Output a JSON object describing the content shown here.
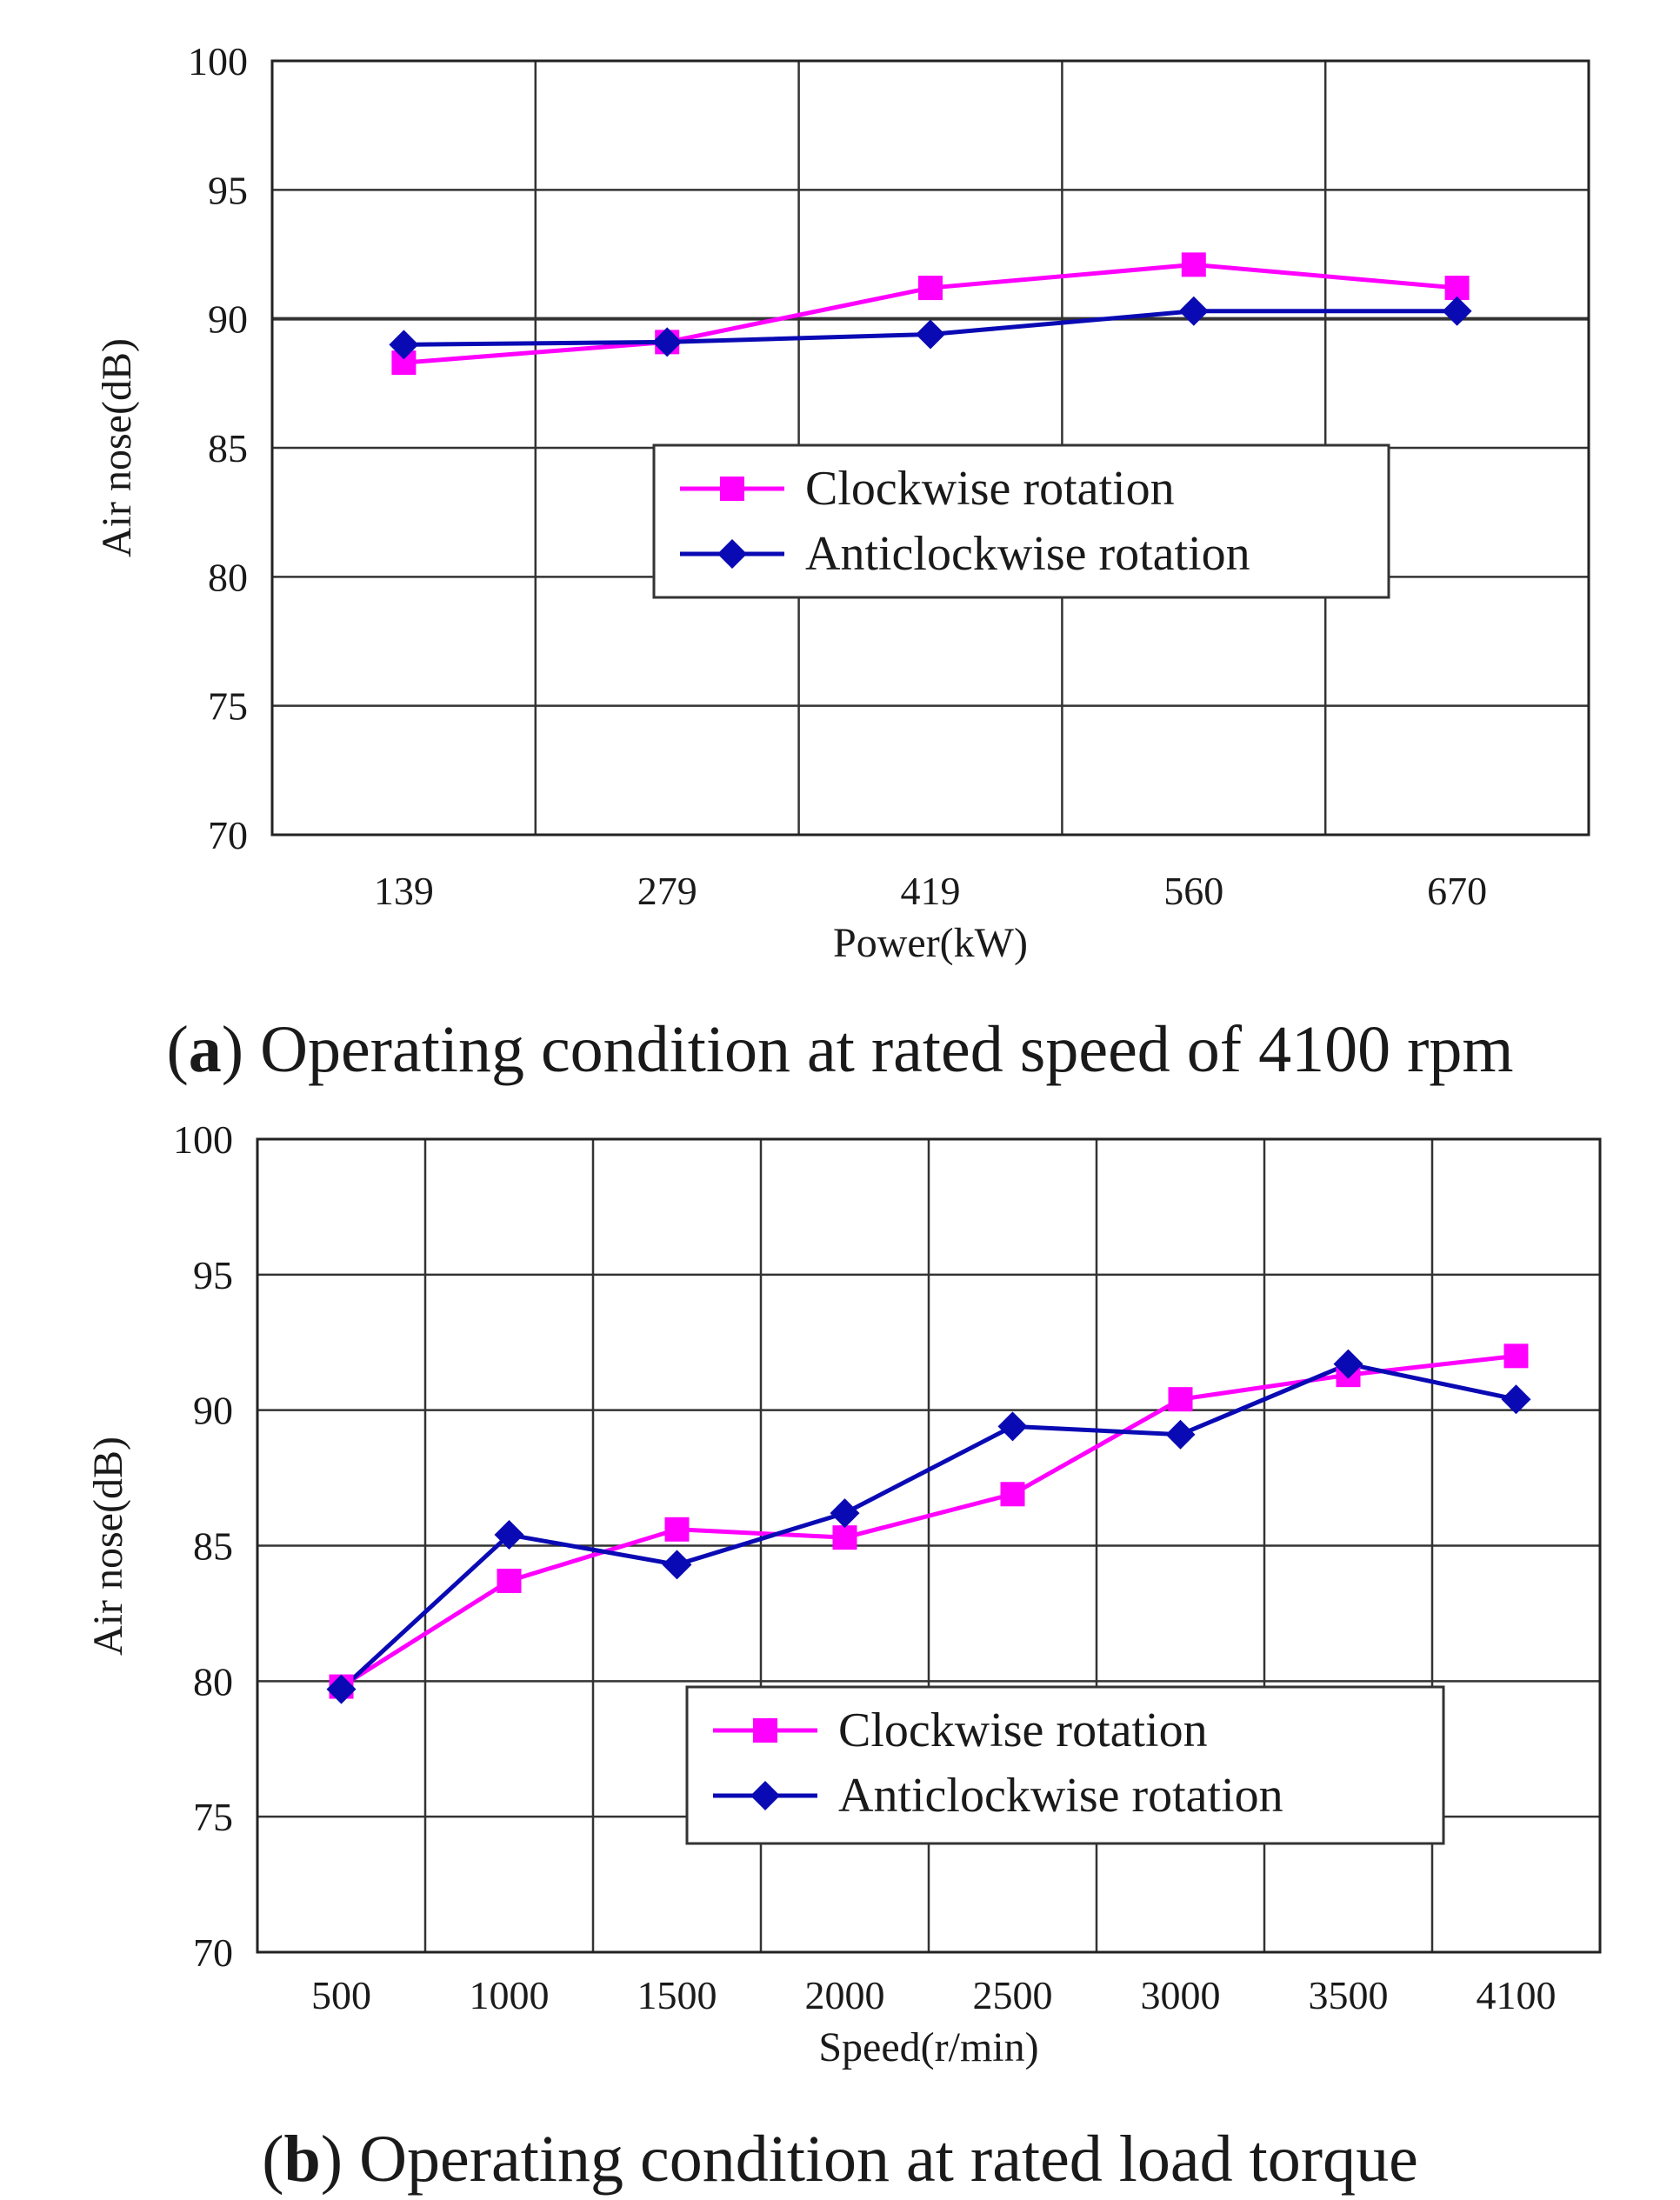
{
  "chart_data": [
    {
      "id": "a",
      "type": "line",
      "caption_letter": "a",
      "caption_text": "Operating condition at rated speed of 4100 rpm",
      "xlabel": "Power(kW)",
      "ylabel": "Air nose(dB)",
      "categories": [
        "139",
        "279",
        "419",
        "560",
        "670"
      ],
      "ylim": [
        70,
        100
      ],
      "yticks": [
        "70",
        "75",
        "80",
        "85",
        "90",
        "95",
        "100"
      ],
      "grid": true,
      "legend_position": "center",
      "series": [
        {
          "name": "Clockwise rotation",
          "marker": "square",
          "color": "#ff00ff",
          "values": [
            88.3,
            89.1,
            91.2,
            92.1,
            91.2
          ]
        },
        {
          "name": "Anticlockwise rotation",
          "marker": "diamond",
          "color": "#0a0ab4",
          "values": [
            89.0,
            89.1,
            89.4,
            90.3,
            90.3
          ]
        }
      ]
    },
    {
      "id": "b",
      "type": "line",
      "caption_letter": "b",
      "caption_text": "Operating condition at rated load torque",
      "xlabel": "Speed(r/min)",
      "ylabel": "Air nose(dB)",
      "categories": [
        "500",
        "1000",
        "1500",
        "2000",
        "2500",
        "3000",
        "3500",
        "4100"
      ],
      "ylim": [
        70,
        100
      ],
      "yticks": [
        "70",
        "75",
        "80",
        "85",
        "90",
        "95",
        "100"
      ],
      "grid": true,
      "legend_position": "lower-right",
      "series": [
        {
          "name": "Clockwise rotation",
          "marker": "square",
          "color": "#ff00ff",
          "values": [
            79.8,
            83.7,
            85.6,
            85.3,
            86.9,
            90.4,
            91.3,
            92.0
          ]
        },
        {
          "name": "Anticlockwise rotation",
          "marker": "diamond",
          "color": "#0a0ab4",
          "values": [
            79.7,
            85.4,
            84.3,
            86.2,
            89.4,
            89.1,
            91.7,
            90.4
          ]
        }
      ]
    }
  ]
}
